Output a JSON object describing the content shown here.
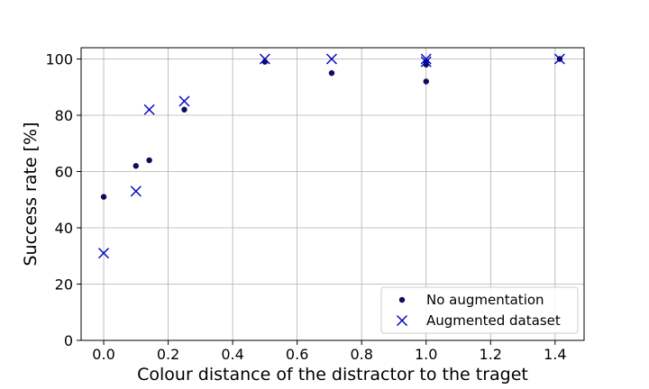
{
  "chart_data": {
    "type": "scatter",
    "title": "",
    "xlabel": "Colour distance of the distractor to the traget",
    "ylabel": "Success rate [%]",
    "xlim": [
      -0.07,
      1.49
    ],
    "ylim": [
      0,
      104
    ],
    "xticks": [
      "0.0",
      "0.2",
      "0.4",
      "0.6",
      "0.8",
      "1.0",
      "1.2",
      "1.4"
    ],
    "yticks": [
      "0",
      "20",
      "40",
      "60",
      "80",
      "100"
    ],
    "grid": true,
    "legend_position": "bottom-right",
    "series": [
      {
        "name": "No augmentation",
        "marker": "dot",
        "color": "#0d0d5e",
        "x": [
          0.0,
          0.1,
          0.1414,
          0.25,
          0.5,
          0.7071,
          1.0,
          1.0,
          1.0,
          1.4142
        ],
        "y": [
          51,
          62,
          64,
          82,
          99,
          95,
          98,
          99,
          92,
          100
        ]
      },
      {
        "name": "Augmented dataset",
        "marker": "x",
        "color": "#0000bb",
        "x": [
          0.0,
          0.1,
          0.1414,
          0.25,
          0.5,
          0.7071,
          1.0,
          1.0,
          1.4142
        ],
        "y": [
          31,
          53,
          82,
          85,
          100,
          100,
          100,
          99,
          100
        ]
      }
    ]
  }
}
